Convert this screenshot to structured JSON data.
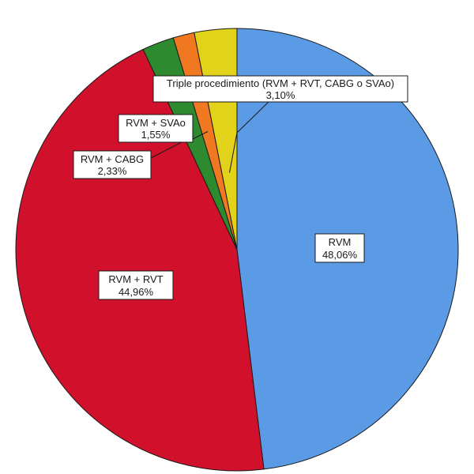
{
  "chart_data": {
    "type": "pie",
    "title": "",
    "slices": [
      {
        "name": "RVM",
        "value": 48.06,
        "value_label": "48,06%",
        "color": "#5b9be6"
      },
      {
        "name": "RVM + RVT",
        "value": 44.96,
        "value_label": "44,96%",
        "color": "#d1102c"
      },
      {
        "name": "RVM + CABG",
        "value": 2.33,
        "value_label": "2,33%",
        "color": "#2e8a2e"
      },
      {
        "name": "RVM + SVAo",
        "value": 1.55,
        "value_label": "1,55%",
        "color": "#f07820"
      },
      {
        "name": "Triple procedimiento (RVM + RVT, CABG o SVAo)",
        "value": 3.1,
        "value_label": "3,10%",
        "color": "#e3d21a"
      }
    ],
    "start_angle": "12 o'clock",
    "direction": "clockwise",
    "legend": "none",
    "labels": "name and percentage in boxes"
  }
}
